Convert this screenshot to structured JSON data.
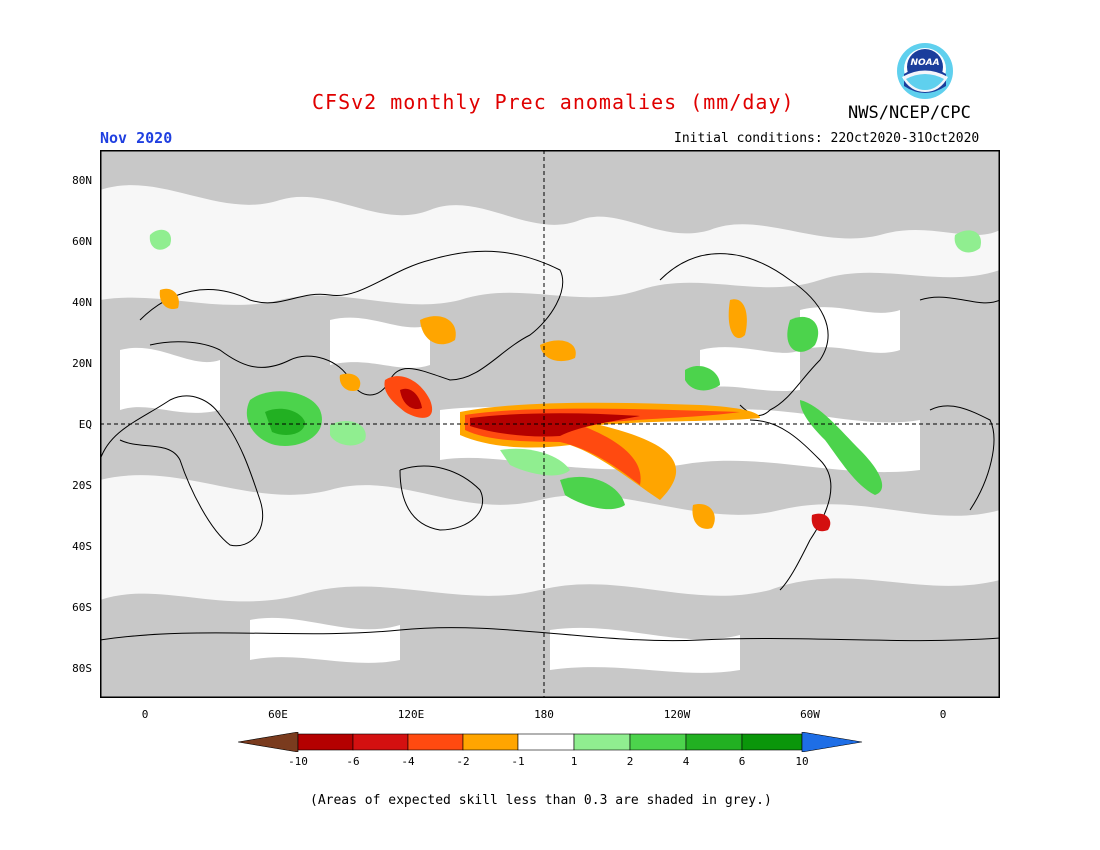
{
  "title": "CFSv2 monthly Prec anomalies (mm/day)",
  "agency": "NWS/NCEP/CPC",
  "logo_text": "NOAA",
  "period": "Nov 2020",
  "initial_conditions": "Initial conditions: 22Oct2020-31Oct2020",
  "lat_labels": [
    "80N",
    "60N",
    "40N",
    "20N",
    "EQ",
    "20S",
    "40S",
    "60S",
    "80S"
  ],
  "lon_labels": [
    "0",
    "60E",
    "120E",
    "180",
    "120W",
    "60W",
    "0"
  ],
  "colorbar": {
    "labels": [
      "-10",
      "-6",
      "-4",
      "-2",
      "-1",
      "1",
      "2",
      "4",
      "6",
      "10"
    ],
    "colors": [
      "#7a3b1e",
      "#b40000",
      "#d41010",
      "#ff4a10",
      "#ffa500",
      "#ffffff",
      "#90ee90",
      "#4cd34c",
      "#22b022",
      "#0a960a",
      "#1e6ee6"
    ]
  },
  "note": "(Areas of expected skill less than 0.3 are shaded in grey.)"
}
